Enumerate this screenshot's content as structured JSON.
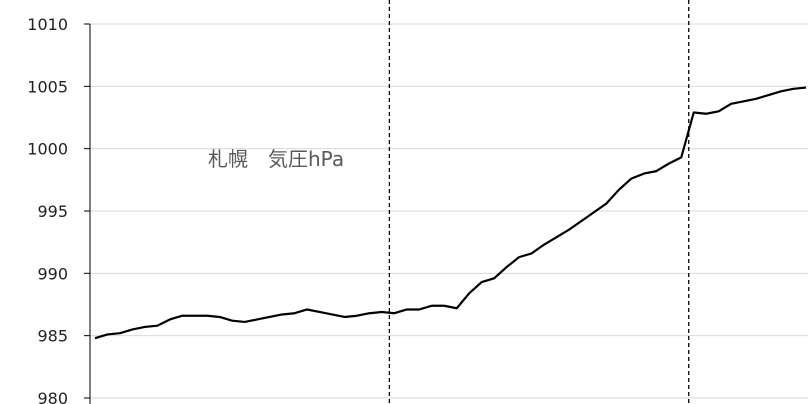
{
  "chart_data": {
    "type": "line",
    "title": "札幌　気圧hPa",
    "xlabel": "",
    "ylabel": "",
    "ylim": [
      980,
      1010
    ],
    "y_ticks": [
      "980",
      "985",
      "990",
      "995",
      "1000",
      "1005",
      "1010"
    ],
    "grid": true,
    "legend": "none",
    "series": [
      {
        "values": [
          984.8,
          985.1,
          985.2,
          985.5,
          985.7,
          985.8,
          986.3,
          986.6,
          986.6,
          986.6,
          986.5,
          986.2,
          986.1,
          986.3,
          986.5,
          986.7,
          986.8,
          987.1,
          986.9,
          986.7,
          986.5,
          986.6,
          986.8,
          986.9,
          986.8,
          987.1,
          987.1,
          987.4,
          987.4,
          987.2,
          988.4,
          989.3,
          989.6,
          990.5,
          991.3,
          991.6,
          992.3,
          992.9,
          993.5,
          994.2,
          994.9,
          995.6,
          996.7,
          997.6,
          998.0,
          998.2,
          998.8,
          999.3,
          1002.9,
          1002.8,
          1003.0,
          1003.6,
          1003.8,
          1004.0,
          1004.3,
          1004.6,
          1004.8,
          1004.9
        ]
      }
    ],
    "dashed_markers_index": [
      23.6,
      47.6
    ],
    "colors": {
      "line": "#000000",
      "grid": "#d9d9d9",
      "axis": "#000000",
      "title": "#595959",
      "tick": "#222222"
    }
  }
}
